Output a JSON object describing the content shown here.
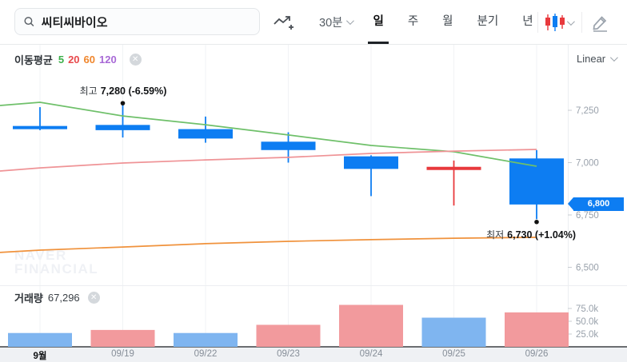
{
  "header": {
    "search": {
      "value": "씨티씨바이오",
      "icon": "search-icon"
    },
    "interval_dropdown": "30분",
    "tabs": [
      {
        "label": "일",
        "active": true
      },
      {
        "label": "주",
        "active": false
      },
      {
        "label": "월",
        "active": false
      },
      {
        "label": "분기",
        "active": false
      },
      {
        "label": "년",
        "active": false
      }
    ],
    "icons": [
      "line-chart-add-icon",
      "candlestick-style-icon",
      "pencil-icon"
    ]
  },
  "price_panel": {
    "legend": {
      "title": "이동평균",
      "items": [
        {
          "label": "5",
          "color": "#3cb04a"
        },
        {
          "label": "20",
          "color": "#e8484b"
        },
        {
          "label": "60",
          "color": "#f0862c"
        },
        {
          "label": "120",
          "color": "#a869d6"
        }
      ],
      "close_label": "✕"
    },
    "scale_selector": "Linear",
    "annotations": {
      "high": {
        "label": "최고",
        "value": "7,280 (-6.59%)"
      },
      "low": {
        "label": "최저",
        "value": "6,730 (+1.04%)"
      }
    },
    "price_tag": "6,800",
    "y_ticks": [
      {
        "label": "7,250",
        "value": 7250
      },
      {
        "label": "7,000",
        "value": 7000
      },
      {
        "label": "6,750",
        "value": 6750
      },
      {
        "label": "6,500",
        "value": 6500
      }
    ],
    "watermark_line1": "NAVER",
    "watermark_line2": "FINANCIAL"
  },
  "volume_panel": {
    "legend_title": "거래량",
    "legend_value": "67,296",
    "close_label": "✕",
    "y_ticks": [
      {
        "label": "75.0k",
        "value": 75
      },
      {
        "label": "50.0k",
        "value": 50
      },
      {
        "label": "25.0k",
        "value": 25
      }
    ]
  },
  "x_axis": {
    "labels": [
      {
        "label": "9월",
        "bold": true
      },
      {
        "label": "09/19",
        "bold": false
      },
      {
        "label": "09/22",
        "bold": false
      },
      {
        "label": "09/23",
        "bold": false
      },
      {
        "label": "09/24",
        "bold": false
      },
      {
        "label": "09/25",
        "bold": false
      },
      {
        "label": "09/26",
        "bold": false
      }
    ]
  },
  "chart_data": {
    "type": "candlestick",
    "title": "씨티씨바이오 일봉",
    "categories": [
      "9월",
      "09/19",
      "09/22",
      "09/23",
      "09/24",
      "09/25",
      "09/26"
    ],
    "ylim": [
      6500,
      7300
    ],
    "candles": [
      {
        "open": 7175,
        "high": 7265,
        "low": 7155,
        "close": 7160
      },
      {
        "open": 7180,
        "high": 7280,
        "low": 7120,
        "close": 7155
      },
      {
        "open": 7160,
        "high": 7220,
        "low": 7095,
        "close": 7115
      },
      {
        "open": 7100,
        "high": 7145,
        "low": 7000,
        "close": 7060
      },
      {
        "open": 7030,
        "high": 7035,
        "low": 6840,
        "close": 6970
      },
      {
        "open": 6970,
        "high": 7010,
        "low": 6795,
        "close": 6980
      },
      {
        "open": 7020,
        "high": 7060,
        "low": 6730,
        "close": 6800
      }
    ],
    "moving_averages": [
      {
        "name": "MA5",
        "color": "#6fc06a",
        "values": [
          7273,
          7288,
          7223,
          7181,
          7132,
          7082,
          7052,
          6983
        ]
      },
      {
        "name": "MA20",
        "color": "#ef9396",
        "values": [
          6960,
          6975,
          6998,
          7013,
          7025,
          7044,
          7055,
          7063
        ]
      },
      {
        "name": "MA60",
        "color": "#f0923c",
        "values": [
          6571,
          6582,
          6597,
          6613,
          6624,
          6632,
          6639,
          6643
        ]
      }
    ],
    "volume_k": [
      27,
      33,
      27,
      43,
      82,
      57,
      67.3
    ],
    "volume_colors": [
      "#7fb5f0",
      "#f29a9d",
      "#7fb5f0",
      "#f29a9d",
      "#f29a9d",
      "#7fb5f0",
      "#f29a9d"
    ],
    "high_marker": {
      "index": 1,
      "price": 7280
    },
    "low_marker": {
      "index": 6,
      "price": 6730
    }
  },
  "colors": {
    "candle_down": "#0d7df2",
    "candle_up": "#e8393d",
    "grid": "#f1f3f5",
    "axis_line": "#3a3e42",
    "tick_text": "#99a1ab",
    "separator": "#eceef1"
  }
}
